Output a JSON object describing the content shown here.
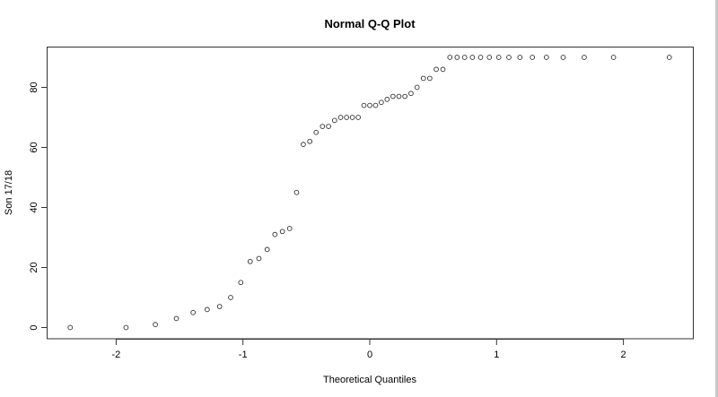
{
  "chart_data": {
    "type": "scatter",
    "title": "Normal Q-Q Plot",
    "xlabel": "Theoretical Quantiles",
    "ylabel": "Son 17/18",
    "xlim": [
      -2.55,
      2.55
    ],
    "ylim": [
      -3.5,
      93.5
    ],
    "xticks": [
      -2,
      -1,
      0,
      1,
      2
    ],
    "yticks": [
      0,
      20,
      40,
      60,
      80
    ],
    "grid": false,
    "legend": null,
    "marker": "open-circle",
    "n": 55,
    "x": [
      -2.362,
      -1.922,
      -1.691,
      -1.525,
      -1.393,
      -1.282,
      -1.184,
      -1.097,
      -1.017,
      -0.943,
      -0.874,
      -0.809,
      -0.748,
      -0.689,
      -0.632,
      -0.577,
      -0.524,
      -0.473,
      -0.423,
      -0.373,
      -0.325,
      -0.277,
      -0.23,
      -0.183,
      -0.137,
      -0.091,
      -0.046,
      0.0,
      0.046,
      0.091,
      0.137,
      0.183,
      0.23,
      0.277,
      0.325,
      0.373,
      0.423,
      0.473,
      0.524,
      0.577,
      0.632,
      0.689,
      0.748,
      0.809,
      0.874,
      0.943,
      1.017,
      1.097,
      1.184,
      1.282,
      1.393,
      1.525,
      1.691,
      1.922,
      2.362
    ],
    "y": [
      0,
      0,
      1,
      3,
      5,
      6,
      7,
      10,
      15,
      22,
      23,
      26,
      31,
      32,
      33,
      45,
      61,
      62,
      65,
      67,
      67,
      69,
      70,
      70,
      70,
      70,
      74,
      74,
      74,
      75,
      76,
      77,
      77,
      77,
      78,
      80,
      83,
      83,
      86,
      86,
      90,
      90,
      90,
      90,
      90,
      90,
      90,
      90,
      90,
      90,
      90,
      90,
      90,
      90,
      90
    ]
  },
  "plot": {
    "title": "Normal Q-Q Plot",
    "xlabel": "Theoretical Quantiles",
    "ylabel": "Son 17/18"
  },
  "colors": {
    "background": "#ffffff",
    "foreground": "#333333"
  }
}
